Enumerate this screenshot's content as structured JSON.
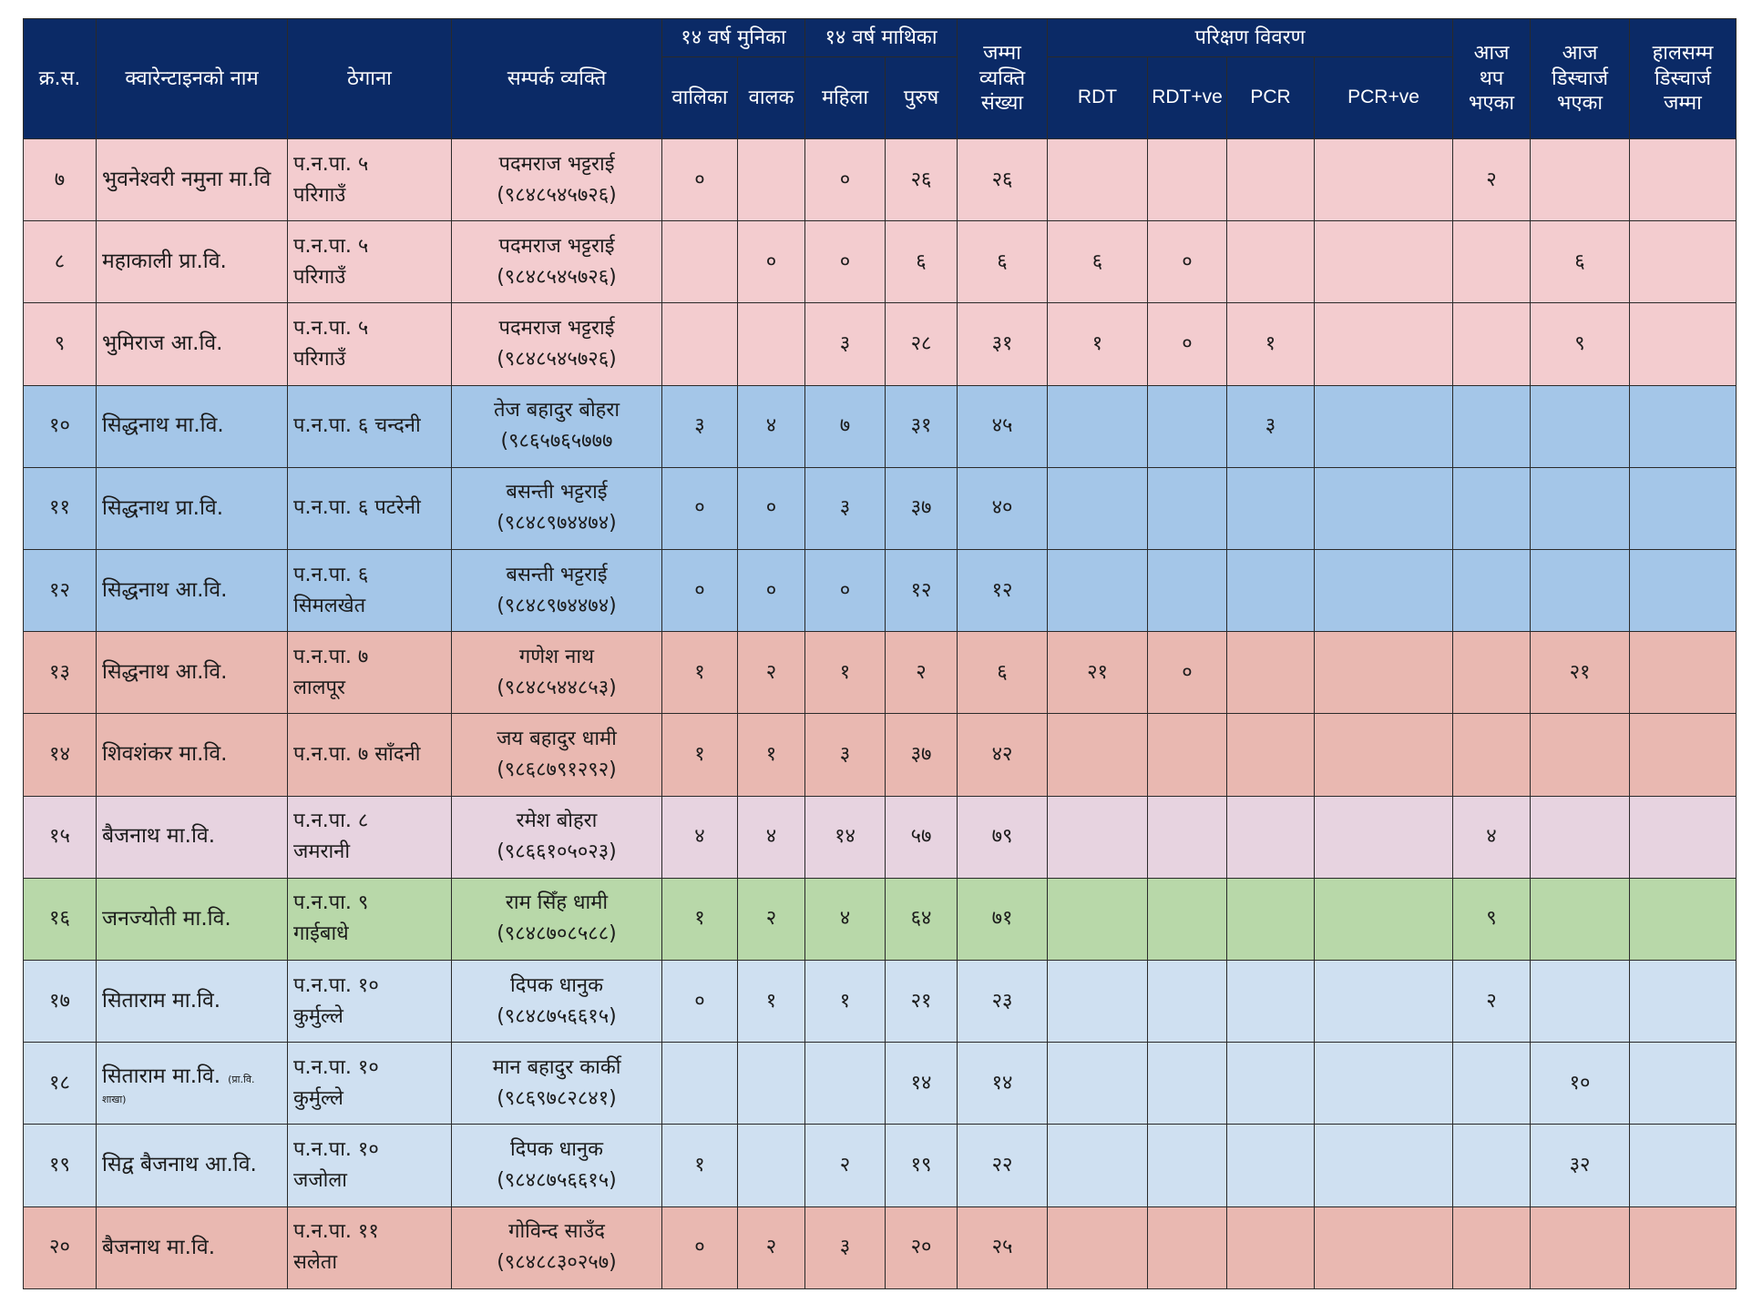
{
  "colors": {
    "header_bg": "#0b2a66",
    "header_text": "#ffffff",
    "row_pink": "#f3cccf",
    "row_blue": "#a4c6e8",
    "row_salmon": "#e9b8b1",
    "row_lavender": "#e7d3e0",
    "row_green": "#b8d8a9",
    "row_lightblue": "#cfe0f1"
  },
  "header": {
    "sn": "क्र.स.",
    "name": "क्वारेन्टाइनको नाम",
    "address": "ठेगाना",
    "contact": "सम्पर्क व्यक्ति",
    "under14": "१४ वर्ष मुनिका",
    "over14": "१४ वर्ष माथिका",
    "total": [
      "जम्मा",
      "व्यक्ति",
      "संख्या"
    ],
    "test_details": "परिक्षण विवरण",
    "added_today": [
      "आज",
      "थप",
      "भएका"
    ],
    "discharged_today": [
      "आज",
      "डिस्चार्ज",
      "भएका"
    ],
    "discharged_total": [
      "हालसम्म",
      "डिस्चार्ज",
      "जम्मा"
    ],
    "girls": "वालिका",
    "boys": "वालक",
    "women": "महिला",
    "men": "पुरुष",
    "rdt": "RDT",
    "rdt_pos": "RDT+ve",
    "pcr": "PCR",
    "pcr_pos": "PCR+ve"
  },
  "rows": [
    {
      "theme": "pink",
      "sn": "७",
      "name": "भुवनेश्वरी नमुना मा.वि",
      "address": [
        "प.न.पा. ५",
        "परिगाउँ"
      ],
      "contact_name": "पदमराज भट्टराई",
      "contact_phone": "(९८४८५४५७२६)",
      "girls": "०",
      "boys": "",
      "women": "०",
      "men": "२६",
      "total": "२६",
      "rdt": "",
      "rdt_pos": "",
      "pcr": "",
      "pcr_pos": "",
      "added_today": "२",
      "discharged_today": "",
      "discharged_total": ""
    },
    {
      "theme": "pink",
      "sn": "८",
      "name": "महाकाली प्रा.वि.",
      "address": [
        "प.न.पा. ५",
        "परिगाउँ"
      ],
      "contact_name": "पदमराज भट्टराई",
      "contact_phone": "(९८४८५४५७२६)",
      "girls": "",
      "boys": "०",
      "women": "०",
      "men": "६",
      "total": "६",
      "rdt": "६",
      "rdt_pos": "०",
      "pcr": "",
      "pcr_pos": "",
      "added_today": "",
      "discharged_today": "६",
      "discharged_total": ""
    },
    {
      "theme": "pink",
      "sn": "९",
      "name": "भुमिराज आ.वि.",
      "address": [
        "प.न.पा. ५",
        "परिगाउँ"
      ],
      "contact_name": "पदमराज भट्टराई",
      "contact_phone": "(९८४८५४५७२६)",
      "girls": "",
      "boys": "",
      "women": "३",
      "men": "२८",
      "total": "३१",
      "rdt": "१",
      "rdt_pos": "०",
      "pcr": "१",
      "pcr_pos": "",
      "added_today": "",
      "discharged_today": "९",
      "discharged_total": ""
    },
    {
      "theme": "blue",
      "sn": "१०",
      "name": "सिद्धनाथ मा.वि.",
      "address": [
        "प.न.पा. ६ चन्दनी"
      ],
      "contact_name": "तेज बहादुर बोहरा",
      "contact_phone": "(९८६५७६५७७७",
      "girls": "३",
      "boys": "४",
      "women": "७",
      "men": "३१",
      "total": "४५",
      "rdt": "",
      "rdt_pos": "",
      "pcr": "३",
      "pcr_pos": "",
      "added_today": "",
      "discharged_today": "",
      "discharged_total": ""
    },
    {
      "theme": "blue",
      "sn": "११",
      "name": "सिद्धनाथ प्रा.वि.",
      "address": [
        "प.न.पा. ६ पटरेनी"
      ],
      "contact_name": "बसन्ती भट्टराई",
      "contact_phone": "(९८४८९७४४७४)",
      "girls": "०",
      "boys": "०",
      "women": "३",
      "men": "३७",
      "total": "४०",
      "rdt": "",
      "rdt_pos": "",
      "pcr": "",
      "pcr_pos": "",
      "added_today": "",
      "discharged_today": "",
      "discharged_total": ""
    },
    {
      "theme": "blue",
      "sn": "१२",
      "name": "सिद्धनाथ आ.वि.",
      "address": [
        "प.न.पा. ६",
        "सिमलखेत"
      ],
      "contact_name": "बसन्ती भट्टराई",
      "contact_phone": "(९८४८९७४४७४)",
      "girls": "०",
      "boys": "०",
      "women": "०",
      "men": "१२",
      "total": "१२",
      "rdt": "",
      "rdt_pos": "",
      "pcr": "",
      "pcr_pos": "",
      "added_today": "",
      "discharged_today": "",
      "discharged_total": ""
    },
    {
      "theme": "salmon",
      "sn": "१३",
      "name": "सिद्धनाथ आ.वि.",
      "address": [
        "प.न.पा. ७",
        "लालपूर"
      ],
      "contact_name": "गणेश नाथ",
      "contact_phone": "(९८४८५४४८५३)",
      "girls": "१",
      "boys": "२",
      "women": "१",
      "men": "२",
      "total": "६",
      "rdt": "२१",
      "rdt_pos": "०",
      "pcr": "",
      "pcr_pos": "",
      "added_today": "",
      "discharged_today": "२१",
      "discharged_total": ""
    },
    {
      "theme": "salmon",
      "sn": "१४",
      "name": "शिवशंकर मा.वि.",
      "address": [
        "प.न.पा. ७ साँदनी"
      ],
      "contact_name": "जय बहादुर धामी",
      "contact_phone": "(९८६८७९१२९२)",
      "girls": "१",
      "boys": "१",
      "women": "३",
      "men": "३७",
      "total": "४२",
      "rdt": "",
      "rdt_pos": "",
      "pcr": "",
      "pcr_pos": "",
      "added_today": "",
      "discharged_today": "",
      "discharged_total": ""
    },
    {
      "theme": "lavender",
      "sn": "१५",
      "name": "बैजनाथ मा.वि.",
      "address": [
        "प.न.पा. ८",
        "जमरानी"
      ],
      "contact_name": "रमेश बोहरा",
      "contact_phone": "(९८६६१०५०२३)",
      "girls": "४",
      "boys": "४",
      "women": "१४",
      "men": "५७",
      "total": "७९",
      "rdt": "",
      "rdt_pos": "",
      "pcr": "",
      "pcr_pos": "",
      "added_today": "४",
      "discharged_today": "",
      "discharged_total": ""
    },
    {
      "theme": "green",
      "sn": "१६",
      "name": "जनज्योती मा.वि.",
      "address": [
        "प.न.पा. ९",
        "गाईबाधे"
      ],
      "contact_name": "राम सिँह धामी",
      "contact_phone": "(९८४८७०८५८८)",
      "girls": "१",
      "boys": "२",
      "women": "४",
      "men": "६४",
      "total": "७१",
      "rdt": "",
      "rdt_pos": "",
      "pcr": "",
      "pcr_pos": "",
      "added_today": "९",
      "discharged_today": "",
      "discharged_total": ""
    },
    {
      "theme": "lightblue",
      "sn": "१७",
      "name": "सिताराम मा.वि.",
      "address": [
        "प.न.पा. १०",
        "कुर्मुल्ले"
      ],
      "contact_name": "दिपक धानुक",
      "contact_phone": "(९८४८७५६६१५)",
      "girls": "०",
      "boys": "१",
      "women": "१",
      "men": "२१",
      "total": "२३",
      "rdt": "",
      "rdt_pos": "",
      "pcr": "",
      "pcr_pos": "",
      "added_today": "२",
      "discharged_today": "",
      "discharged_total": ""
    },
    {
      "theme": "lightblue",
      "sn": "१८",
      "name": "सिताराम मा.वि.",
      "name_note_a": "(प्रा.वि.",
      "name_note_b": "शाखा)",
      "address": [
        "प.न.पा. १०",
        "कुर्मुल्ले"
      ],
      "contact_name": "मान बहादुर कार्की",
      "contact_phone": "(९८६९७८२८४१)",
      "girls": "",
      "boys": "",
      "women": "",
      "men": "१४",
      "total": "१४",
      "rdt": "",
      "rdt_pos": "",
      "pcr": "",
      "pcr_pos": "",
      "added_today": "",
      "discharged_today": "१०",
      "discharged_total": ""
    },
    {
      "theme": "lightblue",
      "sn": "१९",
      "name": "सिद्व बैजनाथ आ.वि.",
      "address": [
        "प.न.पा. १०",
        "जजोला"
      ],
      "contact_name": "दिपक धानुक",
      "contact_phone": "(९८४८७५६६१५)",
      "girls": "१",
      "boys": "",
      "women": "२",
      "men": "१९",
      "total": "२२",
      "rdt": "",
      "rdt_pos": "",
      "pcr": "",
      "pcr_pos": "",
      "added_today": "",
      "discharged_today": "३२",
      "discharged_total": ""
    },
    {
      "theme": "salmon",
      "sn": "२०",
      "name": "बैजनाथ मा.वि.",
      "address": [
        "प.न.पा. ११",
        "सलेता"
      ],
      "contact_name": "गोविन्द साउँद",
      "contact_phone": "(९८४८८३०२५७)",
      "girls": "०",
      "boys": "२",
      "women": "३",
      "men": "२०",
      "total": "२५",
      "rdt": "",
      "rdt_pos": "",
      "pcr": "",
      "pcr_pos": "",
      "added_today": "",
      "discharged_today": "",
      "discharged_total": ""
    }
  ]
}
